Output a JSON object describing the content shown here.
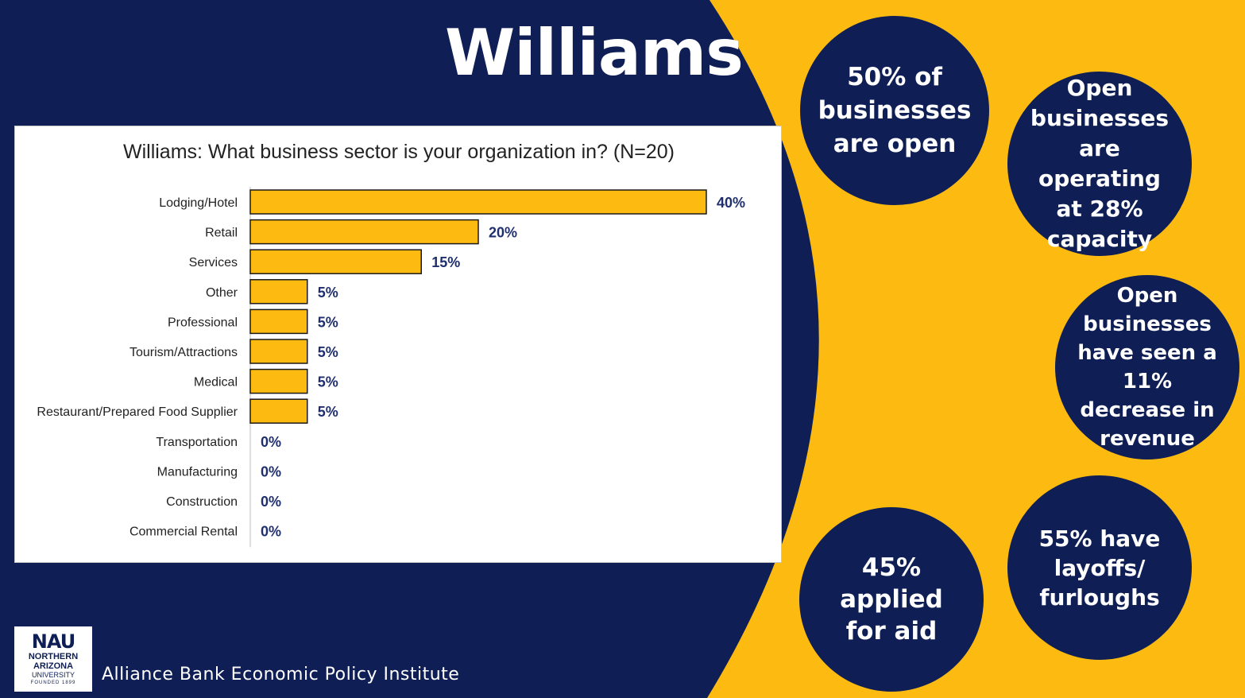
{
  "page_title": "Williams",
  "colors": {
    "navy": "#0F1F55",
    "gold": "#FDBB12",
    "bar": "#FDBB12",
    "bar_stroke": "#1a1a1a",
    "label": "#1F2F6E"
  },
  "chart_data": {
    "type": "bar",
    "orientation": "horizontal",
    "title": "Williams: What business sector is your organization in? (N=20)",
    "categories": [
      "Lodging/Hotel",
      "Retail",
      "Services",
      "Other",
      "Professional",
      "Tourism/Attractions",
      "Medical",
      "Restaurant/Prepared Food Supplier",
      "Transportation",
      "Manufacturing",
      "Construction",
      "Commercial Rental"
    ],
    "values": [
      40,
      20,
      15,
      5,
      5,
      5,
      5,
      5,
      0,
      0,
      0,
      0
    ],
    "value_labels": [
      "40%",
      "20%",
      "15%",
      "5%",
      "5%",
      "5%",
      "5%",
      "5%",
      "0%",
      "0%",
      "0%",
      "0%"
    ],
    "xlim": [
      0,
      40
    ],
    "grid": false,
    "legend": "none"
  },
  "stats": [
    "50% of businesses are open",
    "Open businesses are operating at 28% capacity",
    "Open businesses have seen a 11% decrease in revenue",
    "55% have layoffs/ furloughs",
    "45% applied for aid"
  ],
  "logo": {
    "mark": "NAU",
    "line1": "NORTHERN",
    "line2": "ARIZONA",
    "line3": "UNIVERSITY",
    "line4": "FOUNDED 1899"
  },
  "institute": "Alliance Bank Economic Policy Institute"
}
